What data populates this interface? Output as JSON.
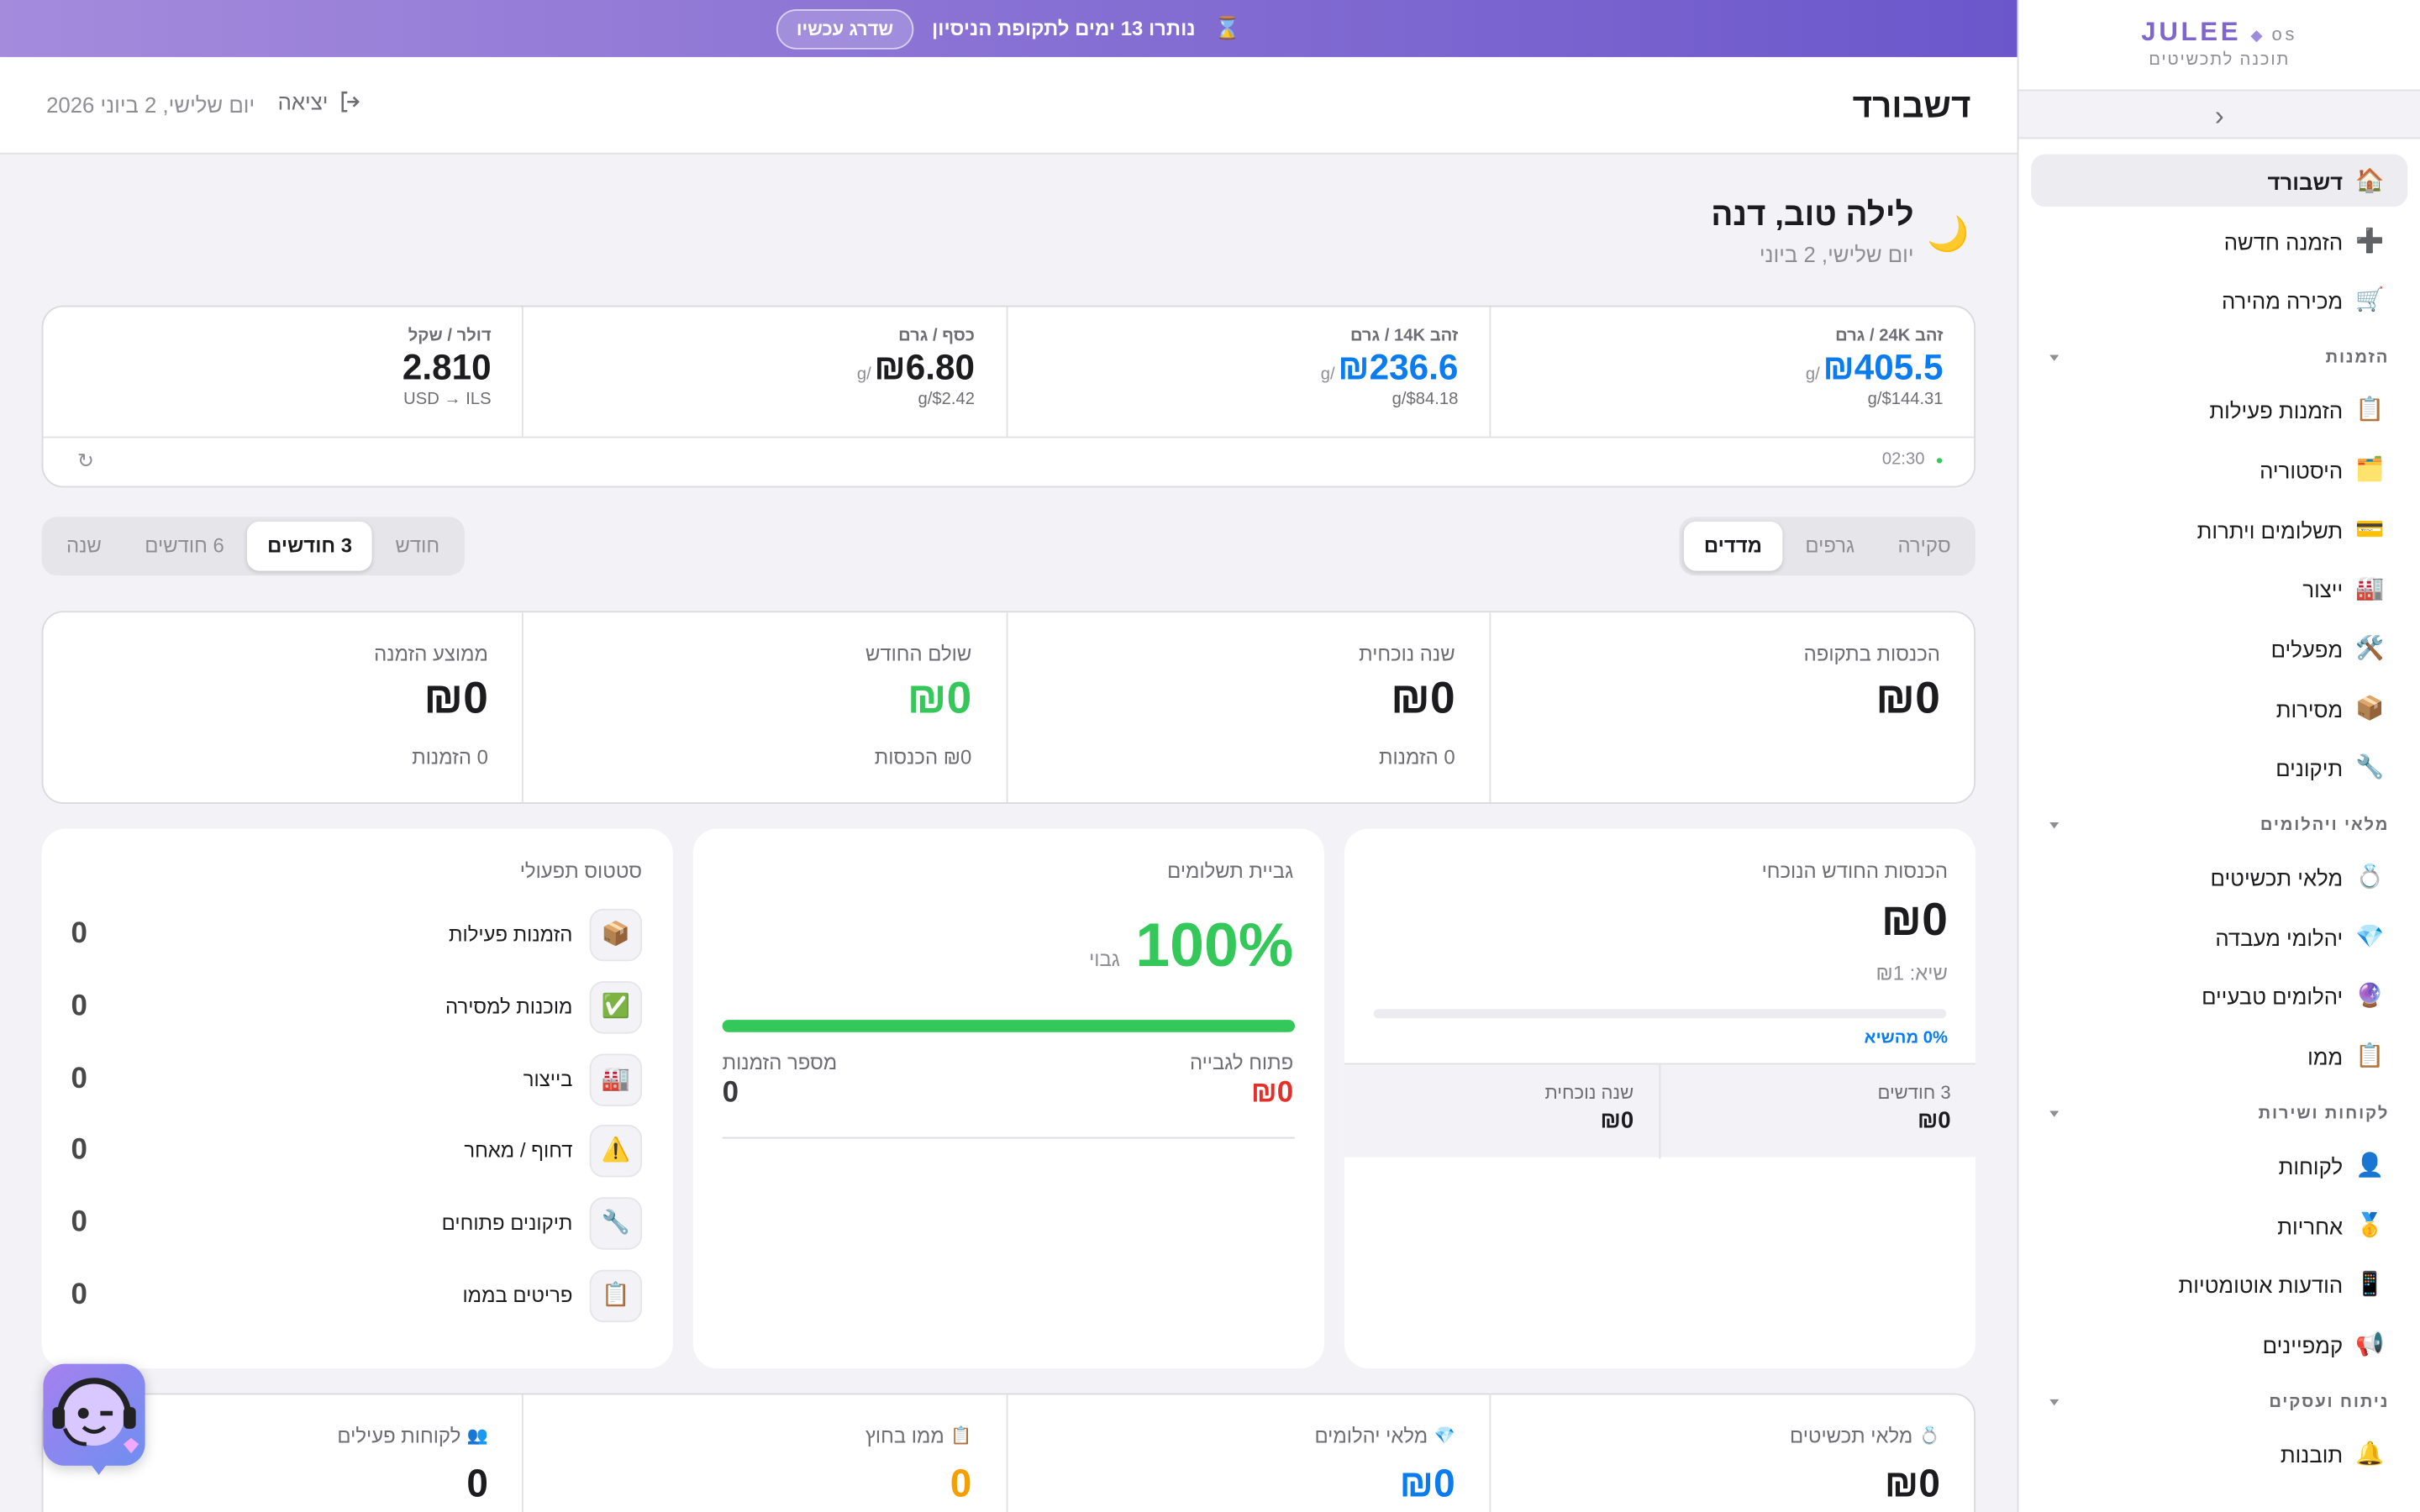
{
  "banner": {
    "icon": "⌛",
    "text": "נותרו 13 ימים לתקופת הניסיון",
    "button": "שדרג עכשיו"
  },
  "header": {
    "title": "דשבורד",
    "logout": "יציאה",
    "date": "יום שלישי, 2 ביוני 2026"
  },
  "greeting": {
    "icon": "🌙",
    "title": "לילה טוב, דנה",
    "subtitle": "יום שלישי, 2 ביוני"
  },
  "prices": {
    "cells": [
      {
        "label": "זהב 24K / גרם",
        "value": "₪405.5",
        "unit": "/g",
        "sub": "$144.31/g",
        "color": "#0a7cf0"
      },
      {
        "label": "זהב 14K / גרם",
        "value": "₪236.6",
        "unit": "/g",
        "sub": "$84.18/g",
        "color": "#0a7cf0"
      },
      {
        "label": "כסף / גרם",
        "value": "₪6.80",
        "unit": "/g",
        "sub": "$2.42/g",
        "color": "#1c1c1e"
      },
      {
        "label": "דולר / שקל",
        "value": "2.810",
        "sub": "USD → ILS",
        "color": "#1c1c1e"
      }
    ],
    "status_dot": "●",
    "time": "02:30",
    "refresh": "↻"
  },
  "view_tabs": {
    "items": [
      "סקירה",
      "גרפים",
      "מדדים"
    ],
    "active": 2
  },
  "period_tabs": {
    "items": [
      "חודש",
      "3 חודשים",
      "6 חודשים",
      "שנה"
    ],
    "active": 1
  },
  "kpis": [
    {
      "label": "הכנסות בתקופה",
      "value": "₪0",
      "color": "#1c1c1e"
    },
    {
      "label": "שנה נוכחית",
      "value": "₪0",
      "sub": "0 הזמנות",
      "color": "#1c1c1e"
    },
    {
      "label": "שולם החודש",
      "value": "₪0",
      "sub": "₪0 הכנסות",
      "color": "#34c759"
    },
    {
      "label": "ממוצע הזמנה",
      "value": "₪0",
      "sub": "0 הזמנות",
      "color": "#1c1c1e"
    }
  ],
  "monthly_revenue": {
    "title": "הכנסות החודש הנוכחי",
    "value": "₪0",
    "peak": "שיא: ₪1",
    "progress_label": "0% מהשיא",
    "periods": [
      {
        "label": "3 חודשים",
        "value": "₪0"
      },
      {
        "label": "שנה נוכחית",
        "value": "₪0"
      }
    ]
  },
  "collection": {
    "title": "גביית תשלומים",
    "value": "100%",
    "value_caption": "גבוי",
    "open_label": "פתוח לגבייה",
    "open_value": "₪0",
    "orders_label": "מספר הזמנות",
    "orders_value": "0"
  },
  "operations": {
    "title": "סטטוס תפעולי",
    "rows": [
      {
        "icon": "📦",
        "label": "הזמנות פעילות",
        "count": "0"
      },
      {
        "icon": "✅",
        "label": "מוכנות למסירה",
        "count": "0"
      },
      {
        "icon": "🏭",
        "label": "בייצור",
        "count": "0"
      },
      {
        "icon": "⚠️",
        "label": "דחוף / מאחר",
        "count": "0"
      },
      {
        "icon": "🔧",
        "label": "תיקונים פתוחים",
        "count": "0"
      },
      {
        "icon": "📋",
        "label": "פריטים בממו",
        "count": "0"
      }
    ]
  },
  "inventory": [
    {
      "icon": "💍",
      "label": "מלאי תכשיטים",
      "value": "₪0",
      "color": "#1c1c1e"
    },
    {
      "icon": "💎",
      "label": "מלאי יהלומים",
      "value": "₪0",
      "color": "#0a7cf0"
    },
    {
      "icon": "📋",
      "label": "ממו בחוץ",
      "value": "0",
      "color": "#f5a000"
    },
    {
      "icon": "👥",
      "label": "לקוחות פעילים",
      "value": "0",
      "color": "#1c1c1e"
    }
  ],
  "sidebar": {
    "logo": "JULEE",
    "logo_mark": "◆",
    "logo_suffix": "os",
    "tagline": "תוכנה לתכשיטים",
    "collapse": "‹",
    "active": 0,
    "nav": [
      {
        "icon": "🏠",
        "label": "דשבורד"
      },
      {
        "icon": "➕",
        "label": "הזמנה חדשה"
      },
      {
        "icon": "🛒",
        "label": "מכירה מהירה"
      },
      {
        "section": "הזמנות"
      },
      {
        "icon": "📋",
        "label": "הזמנות פעילות"
      },
      {
        "icon": "🗂️",
        "label": "היסטוריה"
      },
      {
        "icon": "💳",
        "label": "תשלומים ויתרות"
      },
      {
        "icon": "🏭",
        "label": "ייצור"
      },
      {
        "icon": "🛠️",
        "label": "מפעלים"
      },
      {
        "icon": "📦",
        "label": "מסירות"
      },
      {
        "icon": "🔧",
        "label": "תיקונים"
      },
      {
        "section": "מלאי ויהלומים"
      },
      {
        "icon": "💍",
        "label": "מלאי תכשיטים"
      },
      {
        "icon": "💎",
        "label": "יהלומי מעבדה"
      },
      {
        "icon": "🔮",
        "label": "יהלומים טבעיים"
      },
      {
        "icon": "📋",
        "label": "ממו"
      },
      {
        "section": "לקוחות ושירות"
      },
      {
        "icon": "👤",
        "label": "לקוחות"
      },
      {
        "icon": "🥇",
        "label": "אחריות"
      },
      {
        "icon": "📱",
        "label": "הודעות אוטומטיות"
      },
      {
        "icon": "📢",
        "label": "קמפיינים"
      },
      {
        "section": "ניתוח ועסקים"
      },
      {
        "icon": "🔔",
        "label": "תובנות"
      }
    ]
  }
}
